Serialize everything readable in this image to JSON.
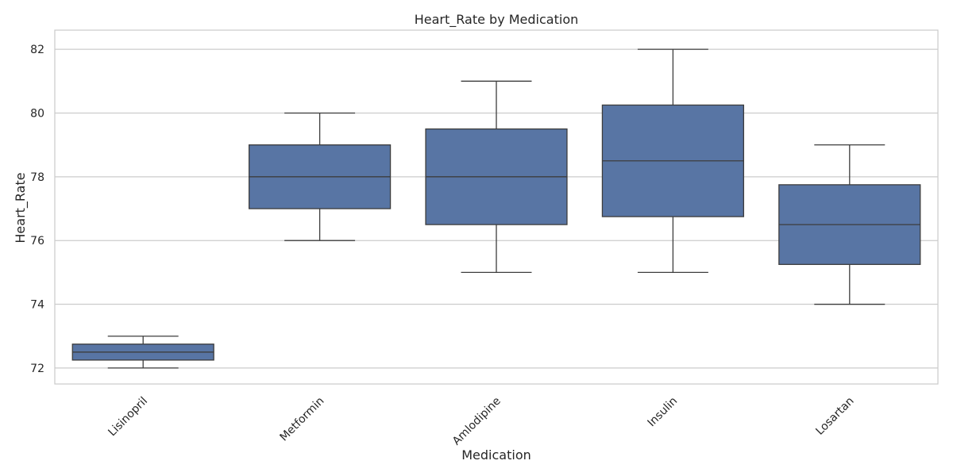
{
  "chart_data": {
    "type": "box",
    "title": "Heart_Rate by Medication",
    "xlabel": "Medication",
    "ylabel": "Heart_Rate",
    "ylim": [
      71.5,
      82.6
    ],
    "yticks": [
      72,
      74,
      76,
      78,
      80,
      82
    ],
    "grid": "horizontal",
    "box_color": "#5875a4",
    "line_color": "#3d3d3d",
    "grid_color": "#cccccc",
    "categories": [
      "Lisinopril",
      "Metformin",
      "Amlodipine",
      "Insulin",
      "Losartan"
    ],
    "boxes": [
      {
        "category": "Lisinopril",
        "whisker_low": 72,
        "q1": 72.25,
        "median": 72.5,
        "q3": 72.75,
        "whisker_high": 73
      },
      {
        "category": "Metformin",
        "whisker_low": 76,
        "q1": 77,
        "median": 78,
        "q3": 79,
        "whisker_high": 80
      },
      {
        "category": "Amlodipine",
        "whisker_low": 75,
        "q1": 76.5,
        "median": 78,
        "q3": 79.5,
        "whisker_high": 81
      },
      {
        "category": "Insulin",
        "whisker_low": 75,
        "q1": 76.75,
        "median": 78.5,
        "q3": 80.25,
        "whisker_high": 82
      },
      {
        "category": "Losartan",
        "whisker_low": 74,
        "q1": 75.25,
        "median": 76.5,
        "q3": 77.75,
        "whisker_high": 79
      }
    ]
  }
}
